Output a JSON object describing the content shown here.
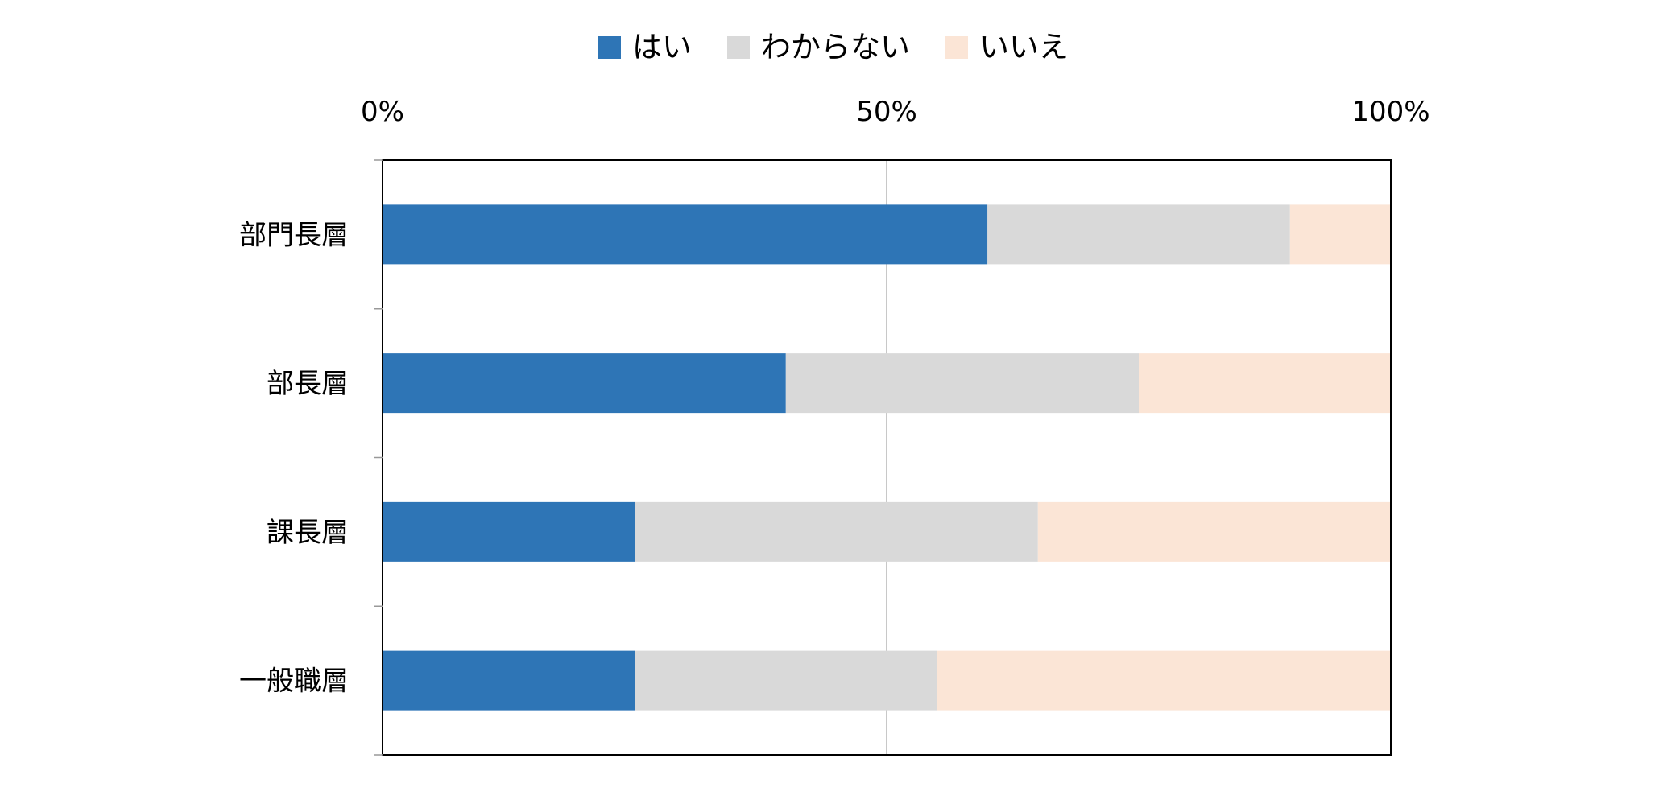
{
  "chart_data": {
    "type": "bar",
    "orientation": "horizontal",
    "stacked": "percent",
    "categories": [
      "部門長層",
      "部長層",
      "課長層",
      "一般職層"
    ],
    "series": [
      {
        "name": "はい",
        "color": "#2e75b6",
        "values": [
          60,
          40,
          25,
          25
        ]
      },
      {
        "name": "わからない",
        "color": "#d9d9d9",
        "values": [
          30,
          35,
          40,
          30
        ]
      },
      {
        "name": "いいえ",
        "color": "#fbe5d6",
        "values": [
          10,
          25,
          35,
          45
        ]
      }
    ],
    "x_ticks": [
      "0%",
      "50%",
      "100%"
    ],
    "xlim": [
      0,
      100
    ],
    "x_axis_position": "top",
    "grid": true,
    "legend_position": "top"
  }
}
